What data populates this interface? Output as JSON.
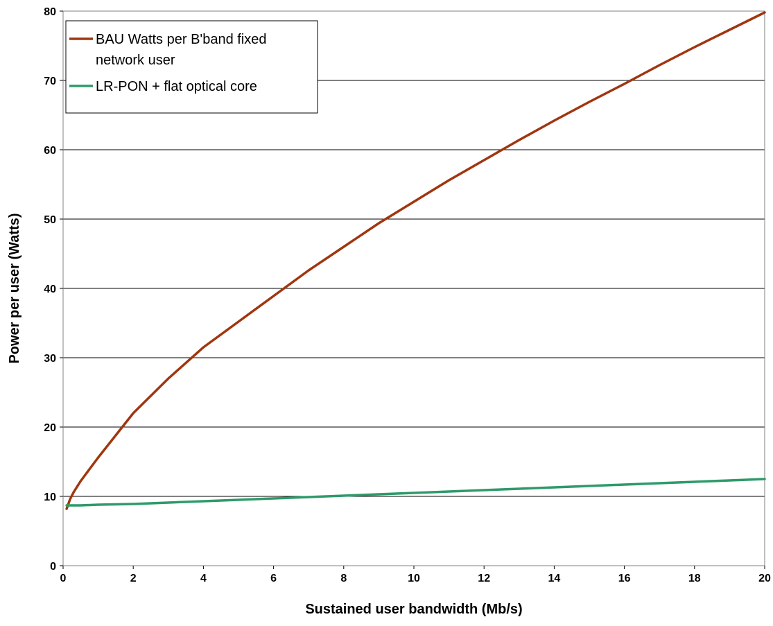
{
  "chart_data": {
    "type": "line",
    "title": "",
    "xlabel": "Sustained user bandwidth (Mb/s)",
    "ylabel": "Power per user (Watts)",
    "xlim": [
      0,
      20
    ],
    "ylim": [
      0,
      80
    ],
    "xticks": [
      0,
      2,
      4,
      6,
      8,
      10,
      12,
      14,
      16,
      18,
      20
    ],
    "yticks": [
      0,
      10,
      20,
      30,
      40,
      50,
      60,
      70,
      80
    ],
    "grid": "horizontal",
    "legend_position": "top-left",
    "series": [
      {
        "name_lines": [
          "BAU Watts per B'band fixed",
          "network user"
        ],
        "color": "#A0360F",
        "points": [
          [
            0.1,
            8.2
          ],
          [
            0.2,
            9.6
          ],
          [
            0.3,
            10.6
          ],
          [
            0.5,
            12.2
          ],
          [
            0.75,
            13.9
          ],
          [
            1,
            15.6
          ],
          [
            1.5,
            18.8
          ],
          [
            2,
            22.0
          ],
          [
            3,
            27.0
          ],
          [
            4,
            31.5
          ],
          [
            5,
            35.2
          ],
          [
            6,
            38.9
          ],
          [
            7,
            42.6
          ],
          [
            8,
            46.0
          ],
          [
            9,
            49.4
          ],
          [
            10,
            52.5
          ],
          [
            11,
            55.6
          ],
          [
            12,
            58.5
          ],
          [
            13,
            61.4
          ],
          [
            14,
            64.2
          ],
          [
            15,
            66.9
          ],
          [
            16,
            69.5
          ],
          [
            17,
            72.2
          ],
          [
            18,
            74.8
          ],
          [
            19,
            77.3
          ],
          [
            20,
            79.8
          ]
        ]
      },
      {
        "name_lines": [
          "LR-PON + flat optical core"
        ],
        "color": "#2E9A6A",
        "points": [
          [
            0.1,
            8.7
          ],
          [
            0.5,
            8.7
          ],
          [
            1,
            8.8
          ],
          [
            2,
            8.9
          ],
          [
            3,
            9.1
          ],
          [
            4,
            9.3
          ],
          [
            5,
            9.5
          ],
          [
            6,
            9.7
          ],
          [
            7,
            9.9
          ],
          [
            8,
            10.1
          ],
          [
            9,
            10.3
          ],
          [
            10,
            10.5
          ],
          [
            11,
            10.7
          ],
          [
            12,
            10.9
          ],
          [
            13,
            11.1
          ],
          [
            14,
            11.3
          ],
          [
            15,
            11.5
          ],
          [
            16,
            11.7
          ],
          [
            17,
            11.9
          ],
          [
            18,
            12.1
          ],
          [
            19,
            12.3
          ],
          [
            20,
            12.5
          ]
        ]
      }
    ]
  }
}
